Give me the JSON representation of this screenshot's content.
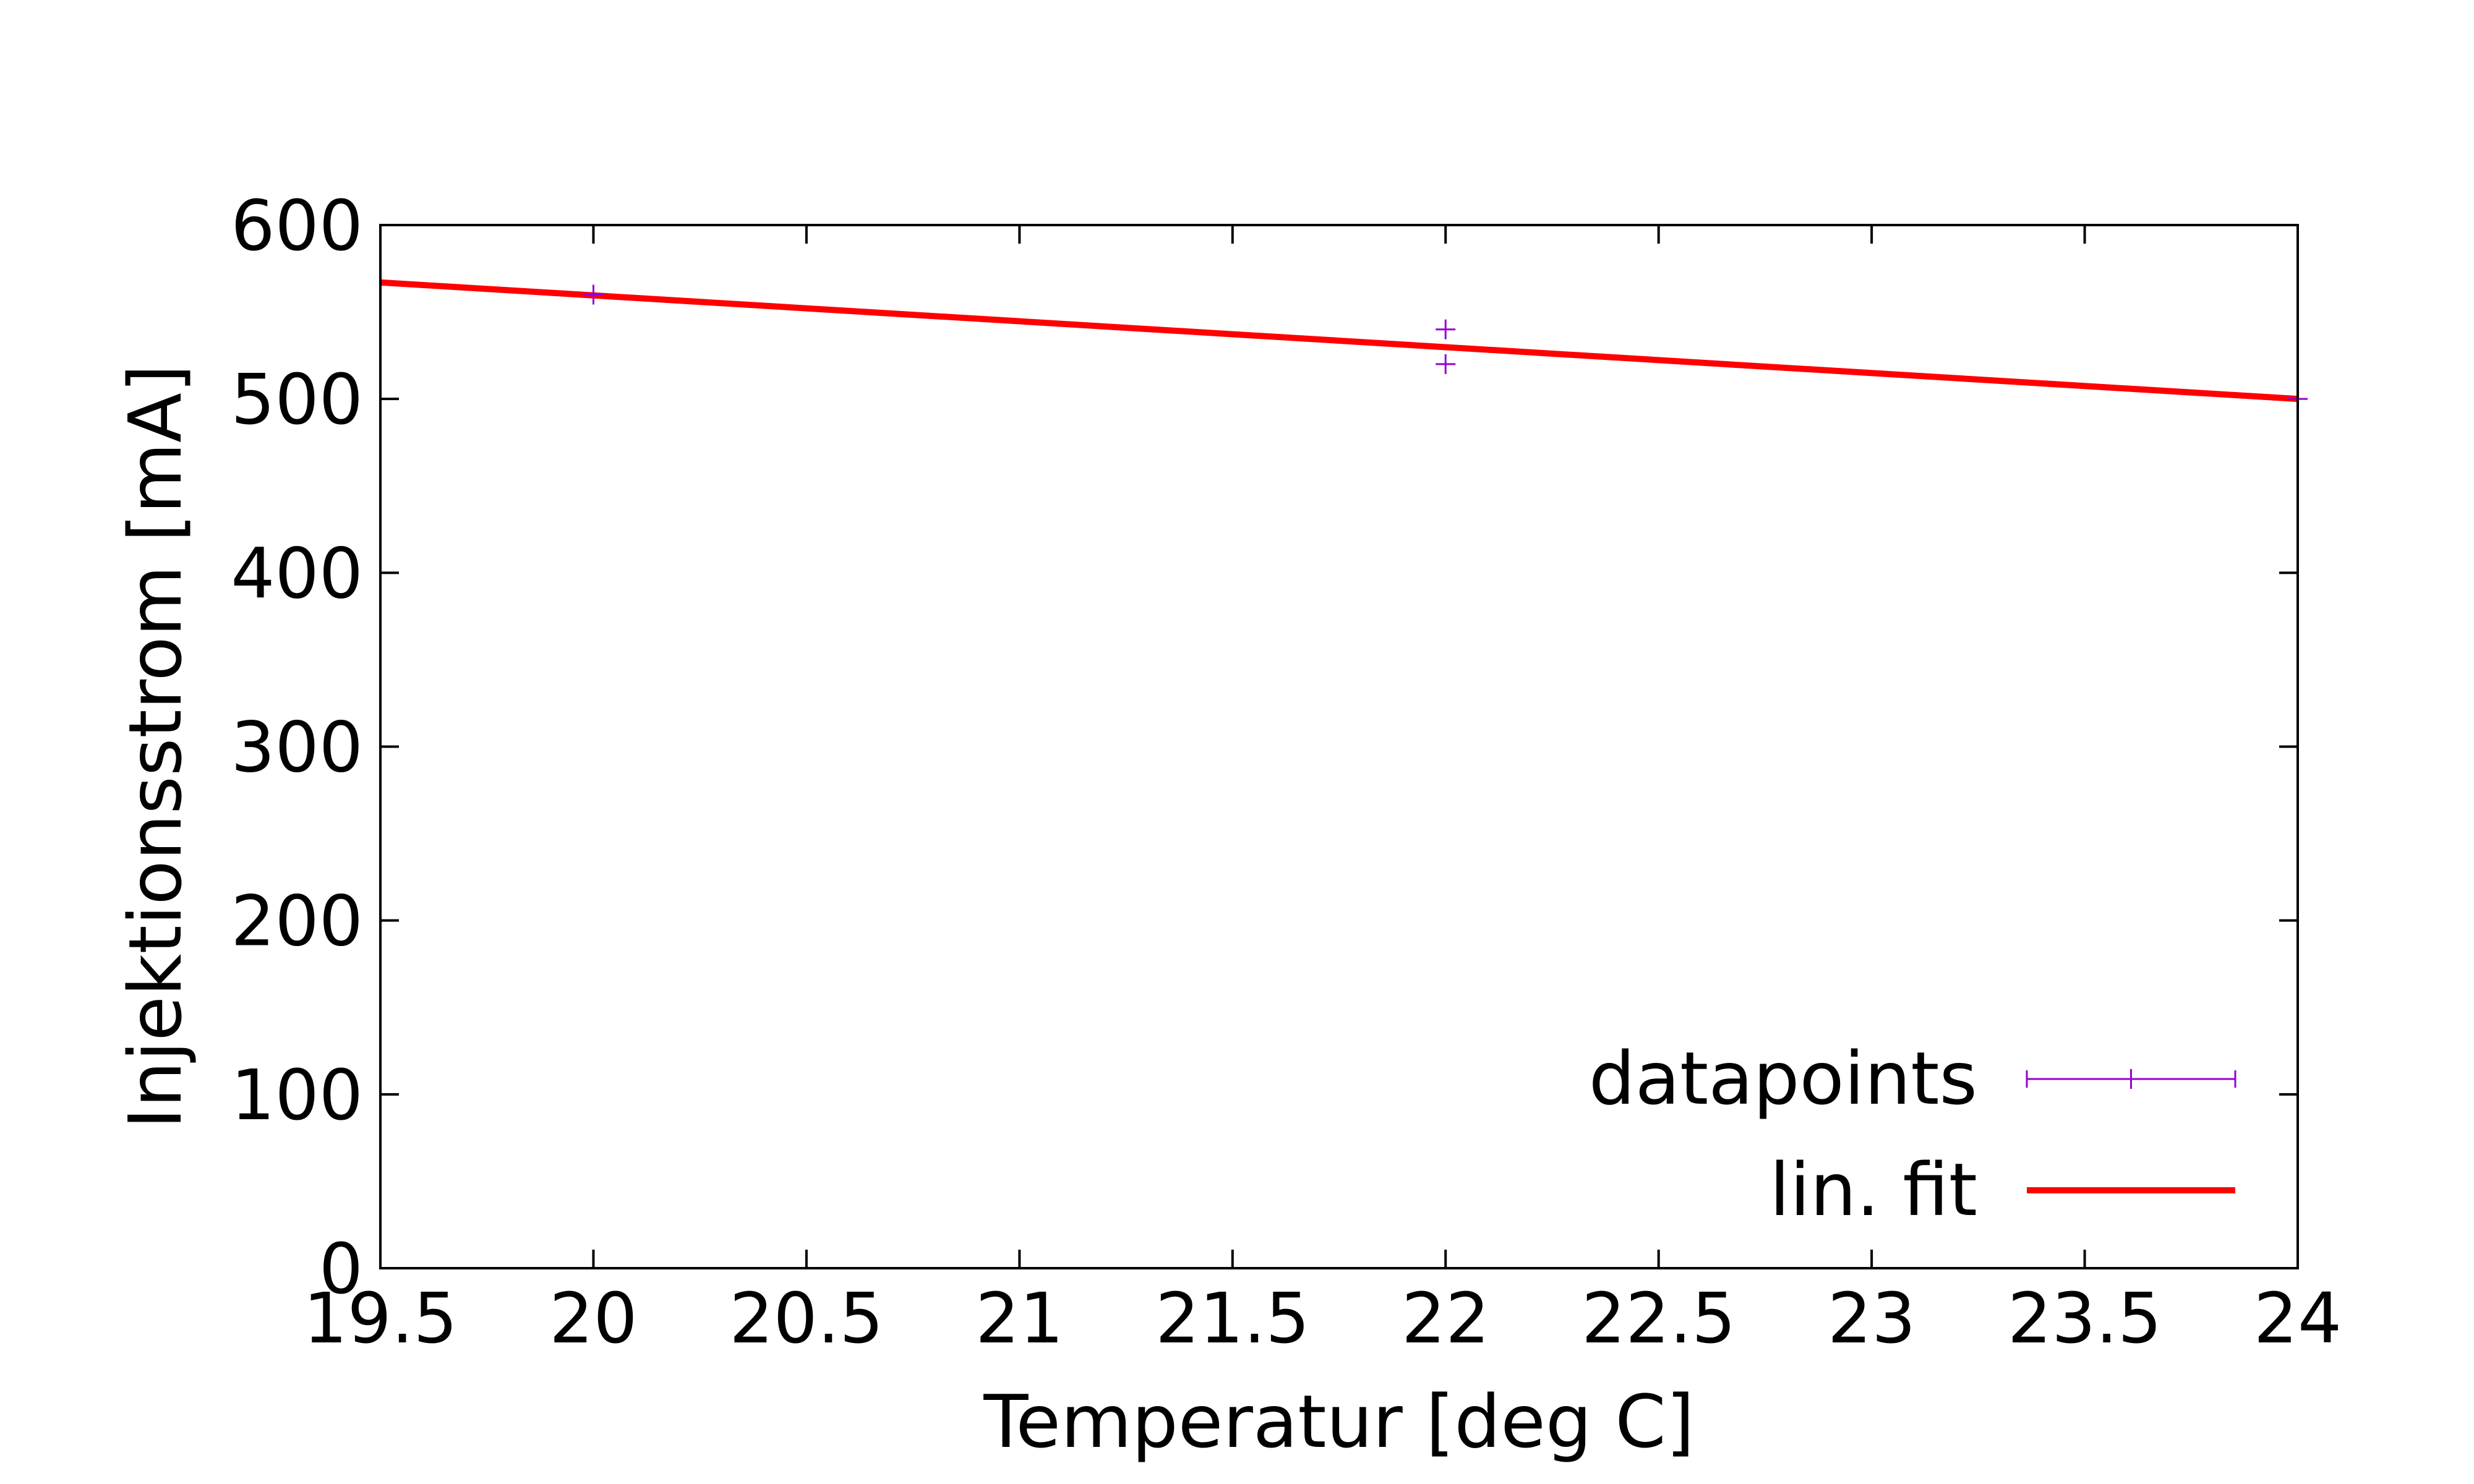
{
  "chart_data": {
    "type": "scatter",
    "title": "",
    "xlabel": "Temperatur [deg C]",
    "ylabel": "Injektionsstrom [mA]",
    "xlim": [
      19.5,
      24
    ],
    "ylim": [
      0,
      600
    ],
    "xticks": [
      "19.5",
      "20",
      "20.5",
      "21",
      "21.5",
      "22",
      "22.5",
      "23",
      "23.5",
      "24"
    ],
    "yticks": [
      "0",
      "100",
      "200",
      "300",
      "400",
      "500",
      "600"
    ],
    "grid": false,
    "legend_position": "bottom-right",
    "series": [
      {
        "name": "datapoints",
        "type": "scatter",
        "color": "#9400d3",
        "marker": "plus",
        "points": [
          {
            "x": 20,
            "y": 560
          },
          {
            "x": 22,
            "y": 540
          },
          {
            "x": 22,
            "y": 520
          },
          {
            "x": 24,
            "y": 500
          }
        ]
      },
      {
        "name": "lin. fit",
        "type": "line",
        "color": "#ff0000",
        "x": [
          19.5,
          24
        ],
        "y": [
          567,
          500
        ]
      }
    ]
  }
}
